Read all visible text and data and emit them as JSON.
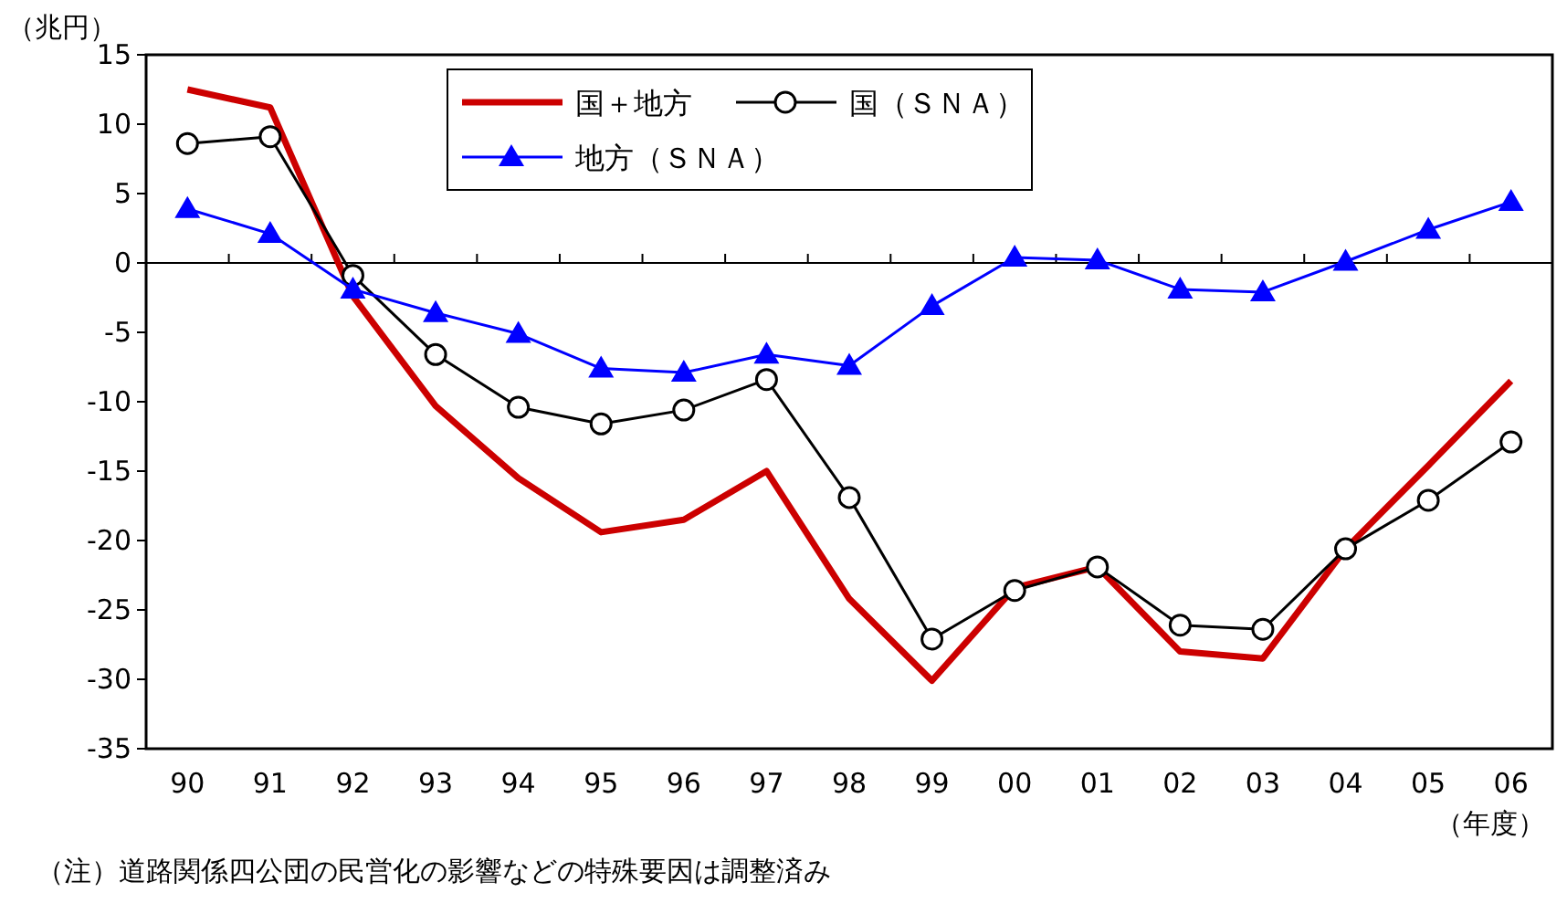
{
  "chart_data": {
    "type": "line",
    "xlabel": "（年度）",
    "ylabel": "（兆円）",
    "categories": [
      "90",
      "91",
      "92",
      "93",
      "94",
      "95",
      "96",
      "97",
      "98",
      "99",
      "00",
      "01",
      "02",
      "03",
      "04",
      "05",
      "06"
    ],
    "series": [
      {
        "name": "国＋地方",
        "color": "#cc0000",
        "marker": "none",
        "values": [
          12.5,
          11.2,
          -2.4,
          -10.3,
          -15.5,
          -19.4,
          -18.5,
          -15,
          -24.2,
          -30.1,
          -23.4,
          -21.9,
          -28,
          -28.5,
          -20.6,
          -14.6,
          -8.5
        ]
      },
      {
        "name": "国（ＳＮＡ）",
        "color": "#000000",
        "marker": "circle",
        "values": [
          8.6,
          9.1,
          -0.9,
          -6.6,
          -10.4,
          -11.6,
          -10.6,
          -8.4,
          -16.9,
          -27.1,
          -23.6,
          -21.9,
          -26.1,
          -26.4,
          -20.6,
          -17.1,
          -12.9
        ]
      },
      {
        "name": "地方（ＳＮＡ）",
        "color": "#0000ff",
        "marker": "triangle",
        "values": [
          3.9,
          2.1,
          -1.9,
          -3.6,
          -5.1,
          -7.6,
          -7.9,
          -6.6,
          -7.4,
          -3.1,
          0.4,
          0.2,
          -1.9,
          -2.1,
          0.1,
          2.4,
          4.4
        ]
      }
    ],
    "ylim": [
      -35,
      15
    ],
    "yticks": [
      -35,
      -30,
      -25,
      -20,
      -15,
      -10,
      -5,
      0,
      5,
      10,
      15
    ],
    "ref_lines": [
      {
        "axis": "y",
        "value": 0
      }
    ],
    "legend": "top",
    "grid": false,
    "annotations": [
      "（注）道路関係四公団の民営化の影響などの特殊要因は調整済み"
    ]
  }
}
